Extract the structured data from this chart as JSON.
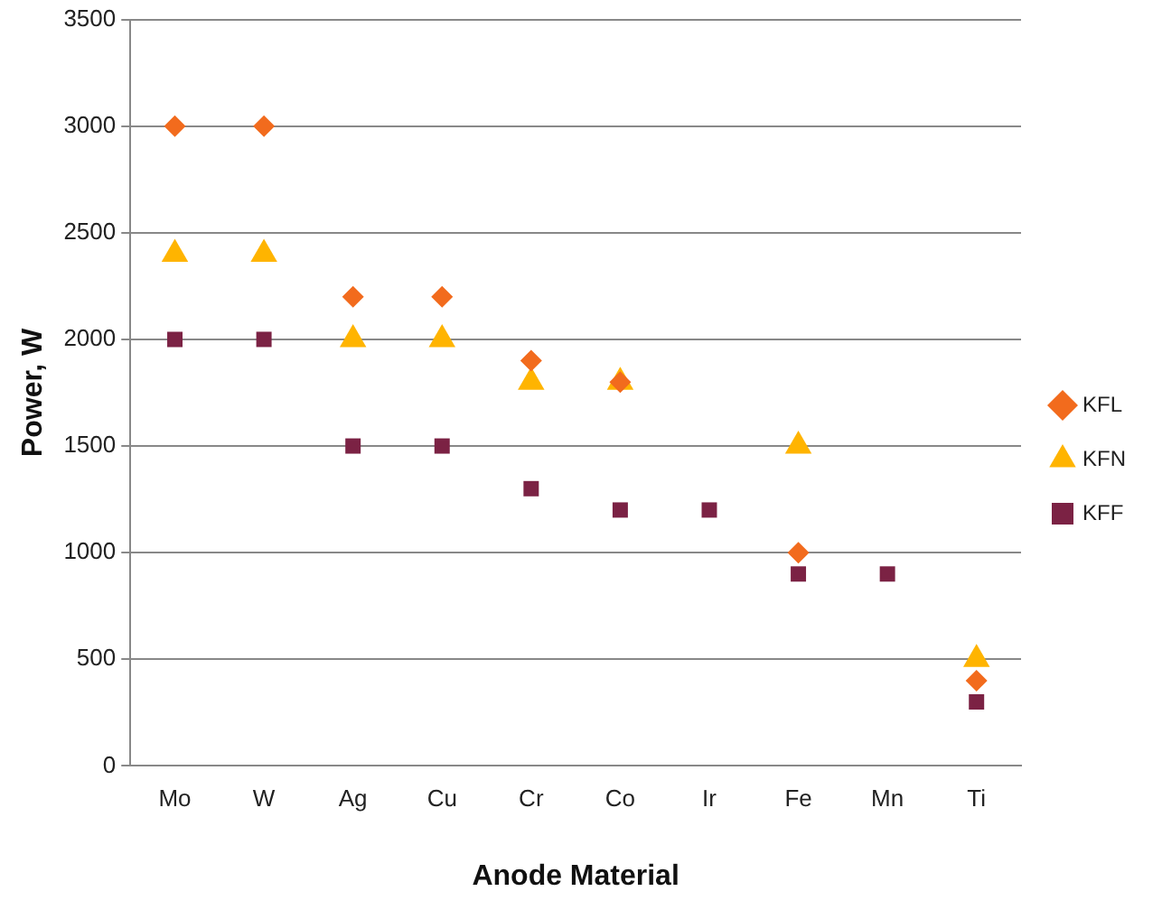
{
  "chart_data": {
    "type": "scatter",
    "xlabel": "Anode Material",
    "ylabel": "Power, W",
    "categories": [
      "Mo",
      "W",
      "Ag",
      "Cu",
      "Cr",
      "Co",
      "Ir",
      "Fe",
      "Mn",
      "Ti"
    ],
    "series": [
      {
        "name": "KFL",
        "color": "#f26b1d",
        "marker": "diamond",
        "values": [
          3000,
          3000,
          2200,
          2200,
          1900,
          1800,
          null,
          1000,
          null,
          400
        ]
      },
      {
        "name": "KFN",
        "color": "#ffb400",
        "marker": "triangle",
        "values": [
          2400,
          2400,
          2000,
          2000,
          1800,
          1800,
          null,
          1500,
          null,
          500
        ]
      },
      {
        "name": "KFF",
        "color": "#7b2244",
        "marker": "square",
        "values": [
          2000,
          2000,
          1500,
          1500,
          1300,
          1200,
          1200,
          900,
          900,
          300
        ]
      }
    ],
    "ylim": [
      0,
      3500
    ],
    "yticks": [
      0,
      500,
      1000,
      1500,
      2000,
      2500,
      3000,
      3500
    ],
    "grid": "y",
    "legend": "right"
  }
}
